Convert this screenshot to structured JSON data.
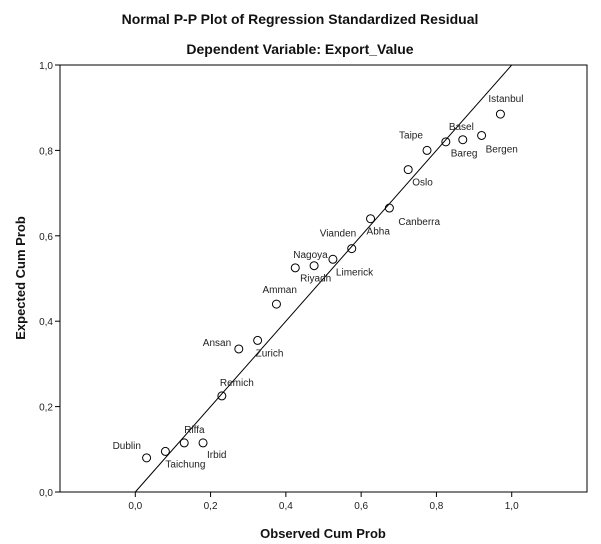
{
  "chart_data": {
    "type": "scatter",
    "title": "Normal P-P Plot of Regression Standardized Residual",
    "subtitle": "Dependent Variable: Export_Value",
    "xlabel": "Observed Cum Prob",
    "ylabel": "Expected Cum Prob",
    "xlim": [
      -0.2,
      1.2
    ],
    "ylim": [
      0.0,
      1.0
    ],
    "x_ticks": [
      "0,0",
      "0,2",
      "0,4",
      "0,6",
      "0,8",
      "1,0"
    ],
    "y_ticks": [
      "0,0",
      "0,2",
      "0,4",
      "0,6",
      "0,8",
      "1,0"
    ],
    "reference_line": {
      "from": [
        0,
        0
      ],
      "to": [
        1,
        1
      ]
    },
    "grid": false,
    "points": [
      {
        "label": "Dublin",
        "x": 0.03,
        "y": 0.08
      },
      {
        "label": "Taichung",
        "x": 0.08,
        "y": 0.095
      },
      {
        "label": "Riffa",
        "x": 0.13,
        "y": 0.115
      },
      {
        "label": "Irbid",
        "x": 0.18,
        "y": 0.115
      },
      {
        "label": "Remich",
        "x": 0.23,
        "y": 0.225
      },
      {
        "label": "Ansan",
        "x": 0.275,
        "y": 0.335
      },
      {
        "label": "Zurich",
        "x": 0.325,
        "y": 0.355
      },
      {
        "label": "Amman",
        "x": 0.375,
        "y": 0.44
      },
      {
        "label": "Nagoya",
        "x": 0.425,
        "y": 0.525
      },
      {
        "label": "Riyadh",
        "x": 0.475,
        "y": 0.53
      },
      {
        "label": "Limerick",
        "x": 0.525,
        "y": 0.545
      },
      {
        "label": "Vianden",
        "x": 0.575,
        "y": 0.57
      },
      {
        "label": "Abha",
        "x": 0.625,
        "y": 0.64
      },
      {
        "label": "Canberra",
        "x": 0.675,
        "y": 0.665
      },
      {
        "label": "Oslo",
        "x": 0.725,
        "y": 0.755
      },
      {
        "label": "Taipe",
        "x": 0.775,
        "y": 0.8
      },
      {
        "label": "Basel",
        "x": 0.825,
        "y": 0.82
      },
      {
        "label": "Bareg",
        "x": 0.87,
        "y": 0.825
      },
      {
        "label": "Bergen",
        "x": 0.92,
        "y": 0.835
      },
      {
        "label": "Istanbul",
        "x": 0.97,
        "y": 0.885
      }
    ]
  }
}
